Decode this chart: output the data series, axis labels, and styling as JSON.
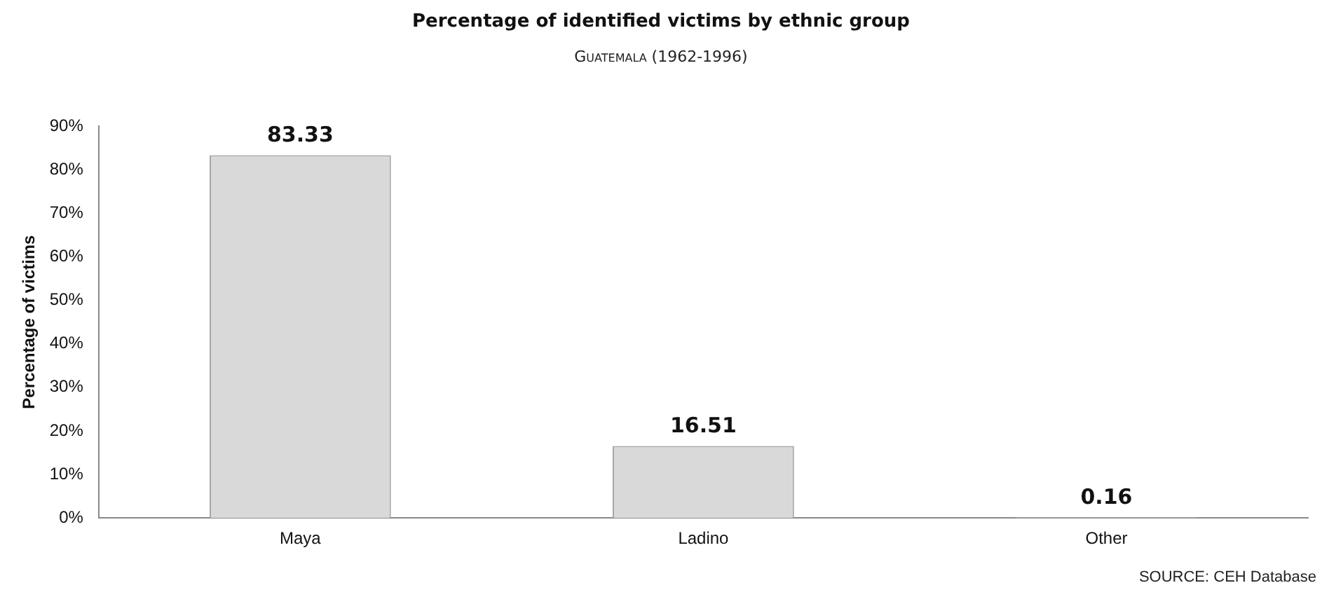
{
  "chart_data": {
    "type": "bar",
    "title": "Percentage of identified victims by ethnic group",
    "subtitle": "Guatemala (1962-1996)",
    "ylabel": "Percentage of victims",
    "annotations": [
      "SOURCE: CEH Database"
    ],
    "categories": [
      "Maya",
      "Ladino",
      "Other"
    ],
    "values": [
      83.33,
      16.51,
      0.16
    ],
    "color": "#d9d9d9",
    "ylim": [
      0,
      90
    ],
    "yticks": [
      {
        "value": 0,
        "label": "0%"
      },
      {
        "value": 10,
        "label": "10%"
      },
      {
        "value": 20,
        "label": "20%"
      },
      {
        "value": 30,
        "label": "30%"
      },
      {
        "value": 40,
        "label": "40%"
      },
      {
        "value": 50,
        "label": "50%"
      },
      {
        "value": 60,
        "label": "60%"
      },
      {
        "value": 70,
        "label": "70%"
      },
      {
        "value": 80,
        "label": "80%"
      },
      {
        "value": 90,
        "label": "90%"
      }
    ],
    "data_labels": true,
    "grid": false
  }
}
